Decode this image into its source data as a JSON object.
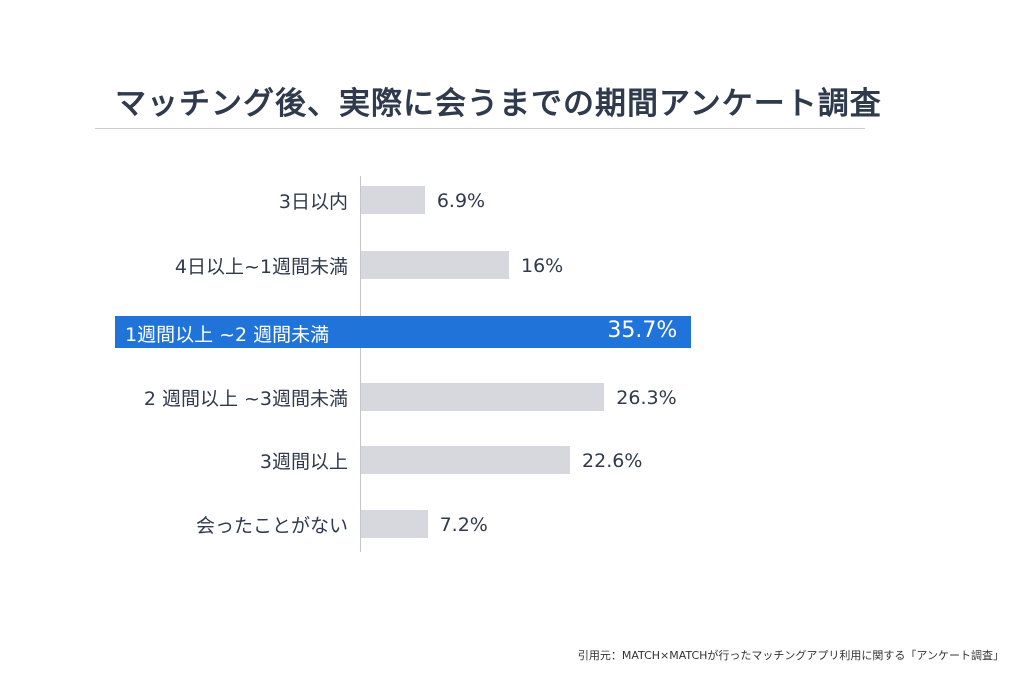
{
  "chart_data": {
    "type": "bar",
    "orientation": "horizontal",
    "title": "マッチング後、実際に会うまでの期間アンケート調査",
    "categories": [
      "3日以内",
      "4日以上~1週間未満",
      "1週間以上 ~2 週間未満",
      "2 週間以上 ~3週間未満",
      "3週間以上",
      "会ったことがない"
    ],
    "values": [
      6.9,
      16,
      35.7,
      26.3,
      22.6,
      7.2
    ],
    "value_labels": [
      "6.9%",
      "16%",
      "35.7%",
      "26.3%",
      "22.6%",
      "7.2%"
    ],
    "highlight_index": 2,
    "xlim": [
      0,
      36
    ],
    "grid": false,
    "colors": {
      "bar": "#d6d8de",
      "highlight": "#1f73d9",
      "text": "#2f3a4c"
    }
  },
  "source": "引用元：MATCH×MATCHが行ったマッチングアプリ利用に関する「アンケート調査」"
}
